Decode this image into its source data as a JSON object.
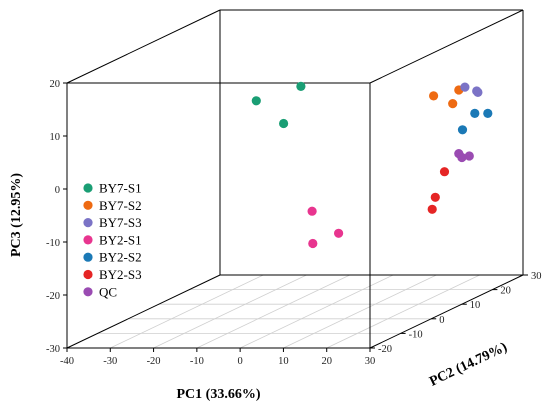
{
  "chart_data": {
    "type": "scatter",
    "projection": "3d",
    "title": "",
    "axes": {
      "x": {
        "label": "PC1 (33.66%)",
        "ticks": [
          -40,
          -30,
          -20,
          -10,
          0,
          10,
          20,
          30
        ]
      },
      "y": {
        "label": "PC2 (14.79%)",
        "ticks": [
          -20,
          -10,
          0,
          10,
          20,
          30
        ]
      },
      "z": {
        "label": "PC3 (12.95%)",
        "ticks": [
          -30,
          -20,
          -10,
          0,
          10,
          20
        ]
      }
    },
    "legend_position": "left",
    "grid": "floor",
    "series": [
      {
        "name": "BY7-S1",
        "color": "#1a9e74",
        "points": [
          [
            -21,
            15,
            7
          ],
          [
            -14,
            14,
            3
          ],
          [
            -10,
            14,
            10
          ]
        ]
      },
      {
        "name": "BY7-S2",
        "color": "#ee6a12",
        "points": [
          [
            15,
            22,
            6
          ],
          [
            18,
            26,
            6
          ],
          [
            18,
            24,
            4
          ]
        ]
      },
      {
        "name": "BY7-S3",
        "color": "#7b73c6",
        "points": [
          [
            18,
            28,
            6
          ],
          [
            21,
            28,
            5
          ],
          [
            20,
            29,
            5
          ]
        ]
      },
      {
        "name": "BY2-S1",
        "color": "#e8358f",
        "points": [
          [
            -3,
            8,
            -18
          ],
          [
            -2,
            15,
            -18
          ],
          [
            -6,
            12,
            -13
          ]
        ]
      },
      {
        "name": "BY2-S2",
        "color": "#1b79b6",
        "points": [
          [
            33,
            10,
            6
          ],
          [
            36,
            10,
            6
          ],
          [
            33,
            6,
            4
          ]
        ]
      },
      {
        "name": "BY2-S3",
        "color": "#e52525",
        "points": [
          [
            26,
            10,
            -5
          ],
          [
            26,
            7,
            -9
          ],
          [
            26,
            6,
            -11
          ]
        ]
      },
      {
        "name": "QC",
        "color": "#9a4bb2",
        "points": [
          [
            18,
            26,
            -6
          ],
          [
            18,
            27,
            -7
          ],
          [
            19,
            28,
            -7
          ]
        ]
      }
    ]
  }
}
